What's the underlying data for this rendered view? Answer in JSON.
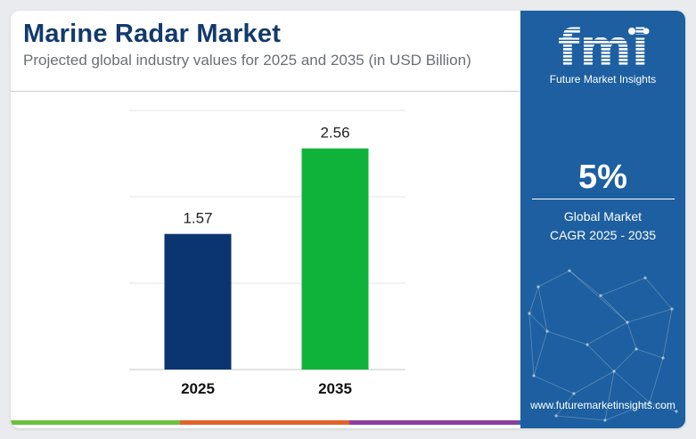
{
  "header": {
    "title": "Marine Radar Market",
    "subtitle": "Projected global industry values for 2025 and 2035 (in USD Billion)"
  },
  "chart_data": {
    "type": "bar",
    "categories": [
      "2025",
      "2035"
    ],
    "values": [
      1.57,
      2.56
    ],
    "data_labels": [
      "1.57",
      "2.56"
    ],
    "bar_colors": [
      "#0b3570",
      "#10b33a"
    ],
    "ylim": [
      0,
      3
    ],
    "grid": true,
    "legend": "none"
  },
  "side_panel": {
    "logo_mark": "fmi",
    "logo_text": "Future Market Insights",
    "cagr_value": "5%",
    "cagr_label_line1": "Global Market",
    "cagr_label_line2": "CAGR 2025 - 2035",
    "website": "www.futuremarketinsights.com",
    "background_color": "#1d5fa0"
  },
  "accent_bar_colors": [
    "#6cbf3f",
    "#e2622b",
    "#8a3fa0",
    "#2d6fb5"
  ]
}
